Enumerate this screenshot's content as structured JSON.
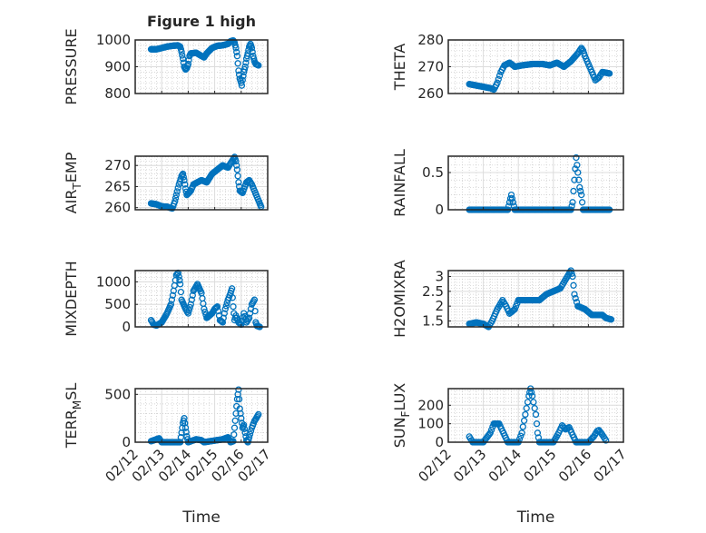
{
  "chart_data": [
    {
      "type": "scatter",
      "title": "Figure 1 high",
      "ylabel": "PRESSURE",
      "ylim": [
        800,
        1000
      ],
      "yticks": [
        800,
        900,
        1000
      ],
      "col": 0,
      "row": 0,
      "points": [
        [
          0.6,
          965
        ],
        [
          0.8,
          965
        ],
        [
          1.0,
          970
        ],
        [
          1.2,
          975
        ],
        [
          1.4,
          978
        ],
        [
          1.6,
          980
        ],
        [
          1.7,
          975
        ],
        [
          1.75,
          955
        ],
        [
          1.8,
          930
        ],
        [
          1.85,
          900
        ],
        [
          1.9,
          890
        ],
        [
          1.95,
          895
        ],
        [
          2.0,
          910
        ],
        [
          2.05,
          940
        ],
        [
          2.1,
          950
        ],
        [
          2.3,
          952
        ],
        [
          2.5,
          940
        ],
        [
          2.6,
          935
        ],
        [
          2.7,
          950
        ],
        [
          2.9,
          970
        ],
        [
          3.1,
          978
        ],
        [
          3.3,
          980
        ],
        [
          3.5,
          985
        ],
        [
          3.6,
          995
        ],
        [
          3.7,
          998
        ],
        [
          3.75,
          990
        ],
        [
          3.8,
          970
        ],
        [
          3.85,
          940
        ],
        [
          3.9,
          885
        ],
        [
          3.95,
          855
        ],
        [
          4.0,
          840
        ],
        [
          4.02,
          830
        ],
        [
          4.05,
          850
        ],
        [
          4.1,
          880
        ],
        [
          4.15,
          900
        ],
        [
          4.2,
          930
        ],
        [
          4.25,
          950
        ],
        [
          4.3,
          975
        ],
        [
          4.35,
          985
        ],
        [
          4.4,
          970
        ],
        [
          4.45,
          940
        ],
        [
          4.5,
          920
        ],
        [
          4.55,
          910
        ],
        [
          4.65,
          905
        ]
      ]
    },
    {
      "type": "scatter",
      "title": "",
      "ylabel": "THETA",
      "ylim": [
        260,
        280
      ],
      "yticks": [
        260,
        270,
        280
      ],
      "col": 1,
      "row": 0,
      "points": [
        [
          0.6,
          263.5
        ],
        [
          0.8,
          263
        ],
        [
          1.0,
          262.5
        ],
        [
          1.2,
          262
        ],
        [
          1.3,
          261.5
        ],
        [
          1.4,
          264
        ],
        [
          1.5,
          268
        ],
        [
          1.6,
          270.5
        ],
        [
          1.75,
          271.5
        ],
        [
          1.9,
          270
        ],
        [
          2.1,
          270.5
        ],
        [
          2.4,
          271
        ],
        [
          2.7,
          271
        ],
        [
          2.9,
          270.5
        ],
        [
          3.1,
          271.5
        ],
        [
          3.3,
          270
        ],
        [
          3.5,
          272
        ],
        [
          3.7,
          275
        ],
        [
          3.8,
          277
        ],
        [
          3.85,
          276
        ],
        [
          3.9,
          274
        ],
        [
          4.0,
          271
        ],
        [
          4.1,
          268
        ],
        [
          4.2,
          265
        ],
        [
          4.3,
          266
        ],
        [
          4.4,
          268
        ],
        [
          4.6,
          267.5
        ]
      ]
    },
    {
      "type": "scatter",
      "title": "",
      "ylabel": "AIR_TEMP",
      "ylim": [
        259.5,
        272.2
      ],
      "yticks": [
        260,
        265,
        270
      ],
      "col": 0,
      "row": 1,
      "points": [
        [
          0.6,
          261
        ],
        [
          0.8,
          260.8
        ],
        [
          1.0,
          260.3
        ],
        [
          1.2,
          260.2
        ],
        [
          1.4,
          259.8
        ],
        [
          1.5,
          261.5
        ],
        [
          1.55,
          263
        ],
        [
          1.65,
          265.5
        ],
        [
          1.75,
          267.5
        ],
        [
          1.8,
          268
        ],
        [
          1.85,
          266.5
        ],
        [
          1.9,
          264.5
        ],
        [
          1.95,
          263
        ],
        [
          2.1,
          264
        ],
        [
          2.2,
          265.5
        ],
        [
          2.5,
          266.5
        ],
        [
          2.7,
          266
        ],
        [
          2.9,
          268
        ],
        [
          3.1,
          269
        ],
        [
          3.3,
          270
        ],
        [
          3.5,
          269.5
        ],
        [
          3.6,
          270.5
        ],
        [
          3.7,
          271.5
        ],
        [
          3.75,
          272
        ],
        [
          3.8,
          271
        ],
        [
          3.85,
          269
        ],
        [
          3.9,
          266
        ],
        [
          3.95,
          264
        ],
        [
          4.05,
          263.5
        ],
        [
          4.2,
          266
        ],
        [
          4.3,
          266.5
        ],
        [
          4.4,
          265.5
        ],
        [
          4.5,
          264
        ],
        [
          4.6,
          262.5
        ],
        [
          4.7,
          261
        ],
        [
          4.75,
          260.2
        ]
      ]
    },
    {
      "type": "scatter",
      "title": "",
      "ylabel": "RAINFALL",
      "ylim": [
        0,
        0.72
      ],
      "yticks": [
        0,
        0.5
      ],
      "col": 1,
      "row": 1,
      "points": [
        [
          0.6,
          0
        ],
        [
          1.7,
          0
        ],
        [
          1.75,
          0.1
        ],
        [
          1.8,
          0.2
        ],
        [
          1.85,
          0.1
        ],
        [
          1.9,
          0
        ],
        [
          3.5,
          0
        ],
        [
          3.55,
          0.1
        ],
        [
          3.6,
          0.4
        ],
        [
          3.65,
          0.7
        ],
        [
          3.7,
          0.5
        ],
        [
          3.75,
          0.3
        ],
        [
          3.8,
          0.2
        ],
        [
          3.85,
          0
        ],
        [
          4.6,
          0
        ]
      ]
    },
    {
      "type": "scatter",
      "title": "",
      "ylabel": "MIXDEPTH",
      "ylim": [
        0,
        1250
      ],
      "yticks": [
        0,
        500,
        1000
      ],
      "col": 0,
      "row": 2,
      "points": [
        [
          0.6,
          150
        ],
        [
          0.7,
          50
        ],
        [
          0.8,
          30
        ],
        [
          1.0,
          100
        ],
        [
          1.2,
          300
        ],
        [
          1.35,
          500
        ],
        [
          1.45,
          800
        ],
        [
          1.55,
          1150
        ],
        [
          1.62,
          1200
        ],
        [
          1.7,
          950
        ],
        [
          1.75,
          600
        ],
        [
          1.9,
          400
        ],
        [
          2.0,
          300
        ],
        [
          2.1,
          500
        ],
        [
          2.2,
          800
        ],
        [
          2.35,
          950
        ],
        [
          2.5,
          750
        ],
        [
          2.6,
          400
        ],
        [
          2.7,
          200
        ],
        [
          2.9,
          300
        ],
        [
          3.0,
          400
        ],
        [
          3.1,
          450
        ],
        [
          3.2,
          150
        ],
        [
          3.3,
          100
        ],
        [
          3.4,
          400
        ],
        [
          3.5,
          600
        ],
        [
          3.6,
          750
        ],
        [
          3.65,
          850
        ],
        [
          3.7,
          450
        ],
        [
          3.75,
          150
        ],
        [
          3.8,
          250
        ],
        [
          3.9,
          100
        ],
        [
          4.0,
          50
        ],
        [
          4.1,
          300
        ],
        [
          4.2,
          100
        ],
        [
          4.3,
          200
        ],
        [
          4.4,
          500
        ],
        [
          4.5,
          600
        ],
        [
          4.55,
          100
        ],
        [
          4.6,
          20
        ],
        [
          4.7,
          0
        ]
      ]
    },
    {
      "type": "scatter",
      "title": "",
      "ylabel": "H2OMIXRA",
      "ylim": [
        1.3,
        3.2
      ],
      "yticks": [
        1.5,
        2,
        2.5,
        3
      ],
      "col": 1,
      "row": 2,
      "points": [
        [
          0.6,
          1.4
        ],
        [
          0.8,
          1.45
        ],
        [
          1.0,
          1.4
        ],
        [
          1.15,
          1.3
        ],
        [
          1.25,
          1.5
        ],
        [
          1.4,
          1.9
        ],
        [
          1.55,
          2.2
        ],
        [
          1.65,
          2.0
        ],
        [
          1.75,
          1.75
        ],
        [
          1.9,
          1.9
        ],
        [
          2.0,
          2.2
        ],
        [
          2.3,
          2.2
        ],
        [
          2.6,
          2.2
        ],
        [
          2.8,
          2.4
        ],
        [
          3.0,
          2.5
        ],
        [
          3.2,
          2.6
        ],
        [
          3.3,
          2.8
        ],
        [
          3.45,
          3.1
        ],
        [
          3.5,
          3.2
        ],
        [
          3.55,
          3.0
        ],
        [
          3.6,
          2.4
        ],
        [
          3.7,
          2.0
        ],
        [
          3.9,
          1.9
        ],
        [
          4.1,
          1.7
        ],
        [
          4.4,
          1.7
        ],
        [
          4.5,
          1.6
        ],
        [
          4.65,
          1.55
        ]
      ]
    },
    {
      "type": "scatter",
      "title": "",
      "ylabel": "TERR_MSL",
      "xlabel": "Time",
      "ylim": [
        0,
        560
      ],
      "yticks": [
        0,
        500
      ],
      "col": 0,
      "row": 3,
      "points": [
        [
          0.6,
          10
        ],
        [
          0.9,
          40
        ],
        [
          1.0,
          0
        ],
        [
          1.7,
          0
        ],
        [
          1.75,
          100
        ],
        [
          1.8,
          200
        ],
        [
          1.85,
          250
        ],
        [
          1.9,
          150
        ],
        [
          1.95,
          60
        ],
        [
          2.0,
          0
        ],
        [
          2.3,
          30
        ],
        [
          2.5,
          20
        ],
        [
          2.6,
          0
        ],
        [
          3.3,
          30
        ],
        [
          3.5,
          50
        ],
        [
          3.6,
          0
        ],
        [
          3.7,
          10
        ],
        [
          3.75,
          150
        ],
        [
          3.8,
          300
        ],
        [
          3.85,
          450
        ],
        [
          3.9,
          550
        ],
        [
          3.95,
          350
        ],
        [
          4.0,
          250
        ],
        [
          4.05,
          150
        ],
        [
          4.1,
          180
        ],
        [
          4.15,
          100
        ],
        [
          4.2,
          20
        ],
        [
          4.25,
          0
        ],
        [
          4.3,
          50
        ],
        [
          4.4,
          150
        ],
        [
          4.5,
          220
        ],
        [
          4.65,
          290
        ]
      ]
    },
    {
      "type": "scatter",
      "title": "",
      "ylabel": "SUN_FLUX",
      "xlabel": "Time",
      "ylim": [
        0,
        290
      ],
      "yticks": [
        0,
        100,
        200
      ],
      "col": 1,
      "row": 3,
      "points": [
        [
          0.6,
          30
        ],
        [
          0.7,
          0
        ],
        [
          1.0,
          0
        ],
        [
          1.2,
          50
        ],
        [
          1.3,
          100
        ],
        [
          1.45,
          100
        ],
        [
          1.55,
          60
        ],
        [
          1.7,
          0
        ],
        [
          2.0,
          0
        ],
        [
          2.1,
          50
        ],
        [
          2.2,
          150
        ],
        [
          2.3,
          250
        ],
        [
          2.35,
          290
        ],
        [
          2.4,
          250
        ],
        [
          2.5,
          150
        ],
        [
          2.55,
          50
        ],
        [
          2.6,
          0
        ],
        [
          3.0,
          0
        ],
        [
          3.15,
          50
        ],
        [
          3.25,
          90
        ],
        [
          3.35,
          70
        ],
        [
          3.45,
          80
        ],
        [
          3.55,
          40
        ],
        [
          3.65,
          0
        ],
        [
          4.0,
          0
        ],
        [
          4.15,
          30
        ],
        [
          4.25,
          60
        ],
        [
          4.3,
          65
        ],
        [
          4.4,
          40
        ],
        [
          4.5,
          10
        ]
      ]
    }
  ],
  "x_axis": {
    "unit": "days since 02/12",
    "xlim": [
      0,
      5
    ],
    "ticks": [
      0,
      1,
      2,
      3,
      4,
      5
    ],
    "tick_labels": [
      "02/12",
      "02/13",
      "02/14",
      "02/15",
      "02/16",
      "02/17"
    ],
    "label": "Time"
  },
  "colors": {
    "marker": "#0072BD",
    "axis": "#262626",
    "grid_major": "#dcdcdc",
    "grid_minor": "#c8c8c8"
  }
}
